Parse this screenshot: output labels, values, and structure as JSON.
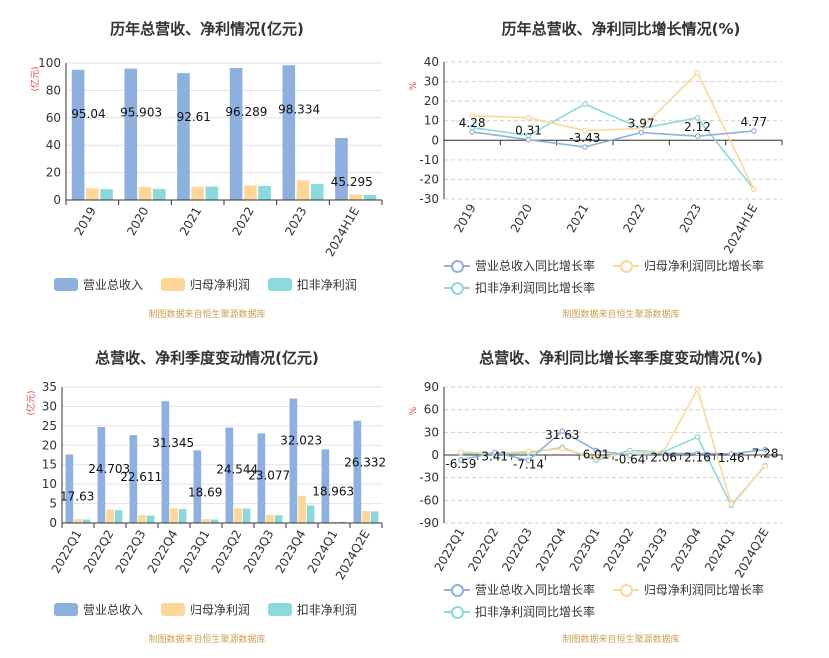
{
  "source_note": "制图数据来自恒生聚源数据库",
  "colors": {
    "revenue": "#8eb0de",
    "net": "#fdd79a",
    "deducted": "#8ad9db"
  },
  "chart_data": [
    {
      "type": "bar",
      "title": "历年总营收、净利情况(亿元)",
      "ylabel": "亿元",
      "categories": [
        "2019",
        "2020",
        "2021",
        "2022",
        "2023",
        "2024H1E"
      ],
      "ylim": [
        0,
        100
      ],
      "yticks": [
        0,
        20,
        40,
        60,
        80,
        100
      ],
      "series": [
        {
          "name": "营业总收入",
          "values": [
            95.04,
            95.903,
            92.61,
            96.289,
            98.334,
            45.295
          ],
          "labels": [
            "95.04",
            "95.903",
            "92.61",
            "96.289",
            "98.334",
            "45.295"
          ]
        },
        {
          "name": "归母净利润",
          "values": [
            8.5,
            9.6,
            9.7,
            10.6,
            14.4,
            3.9
          ]
        },
        {
          "name": "扣非净利润",
          "values": [
            7.9,
            8.1,
            9.8,
            10.3,
            11.8,
            3.7
          ]
        }
      ],
      "legend": "bottom"
    },
    {
      "type": "line",
      "title": "历年总营收、净利同比增长情况(%)",
      "ylabel": "%",
      "categories": [
        "2019",
        "2020",
        "2021",
        "2022",
        "2023",
        "2024H1E"
      ],
      "ylim": [
        -30,
        40
      ],
      "yticks": [
        -30,
        -20,
        -10,
        0,
        10,
        20,
        30,
        40
      ],
      "series": [
        {
          "name": "营业总收入同比增长率",
          "values": [
            4.28,
            0.31,
            -3.43,
            3.97,
            2.12,
            4.77
          ],
          "labels": [
            "4.28",
            "0.31",
            "-3.43",
            "3.97",
            "2.12",
            "4.77"
          ]
        },
        {
          "name": "归母净利润同比增长率",
          "values": [
            12.5,
            11.5,
            5.0,
            6.0,
            34.5,
            -25.0
          ]
        },
        {
          "name": "扣非净利润同比增长率",
          "values": [
            6.5,
            2.5,
            18.5,
            6.0,
            11.5,
            -25.0
          ]
        }
      ],
      "legend": "bottom"
    },
    {
      "type": "bar",
      "title": "总营收、净利季度变动情况(亿元)",
      "ylabel": "亿元",
      "categories": [
        "2022Q1",
        "2022Q2",
        "2022Q3",
        "2022Q4",
        "2023Q1",
        "2023Q2",
        "2023Q3",
        "2023Q4",
        "2024Q1",
        "2024Q2E"
      ],
      "ylim": [
        0,
        35
      ],
      "yticks": [
        0,
        5,
        10,
        15,
        20,
        25,
        30,
        35
      ],
      "series": [
        {
          "name": "营业总收入",
          "values": [
            17.63,
            24.703,
            22.611,
            31.345,
            18.69,
            24.544,
            23.077,
            32.023,
            18.963,
            26.332
          ],
          "labels": [
            "17.63",
            "24.703",
            "22.611",
            "31.345",
            "18.69",
            "24.544",
            "23.077",
            "32.023",
            "18.963",
            "26.332"
          ]
        },
        {
          "name": "归母净利润",
          "values": [
            1.0,
            3.5,
            2.0,
            3.8,
            1.0,
            3.8,
            2.1,
            7.0,
            0.3,
            3.1
          ]
        },
        {
          "name": "扣非净利润",
          "values": [
            0.9,
            3.3,
            1.9,
            3.6,
            0.9,
            3.7,
            2.0,
            4.5,
            0.3,
            3.0
          ]
        }
      ],
      "legend": "bottom"
    },
    {
      "type": "line",
      "title": "总营收、净利同比增长率季度变动情况(%)",
      "ylabel": "%",
      "categories": [
        "2022Q1",
        "2022Q2",
        "2022Q3",
        "2022Q4",
        "2023Q1",
        "2023Q2",
        "2023Q3",
        "2023Q4",
        "2024Q1",
        "2024Q2E"
      ],
      "ylim": [
        -90,
        90
      ],
      "yticks": [
        -90,
        -60,
        -30,
        0,
        30,
        60,
        90
      ],
      "series": [
        {
          "name": "营业总收入同比增长率",
          "values": [
            -6.59,
            3.41,
            -7.14,
            31.63,
            6.01,
            -0.64,
            2.06,
            2.16,
            1.46,
            7.28
          ],
          "labels": [
            "-6.59",
            "3.41",
            "-7.14",
            "31.63",
            "6.01",
            "-0.64",
            "2.06",
            "2.16",
            "1.46",
            "7.28"
          ]
        },
        {
          "name": "归母净利润同比增长率",
          "values": [
            4,
            2,
            5,
            8,
            -3,
            2,
            5,
            87,
            -65,
            -15
          ]
        },
        {
          "name": "扣非净利润同比增长率",
          "values": [
            2,
            1,
            3,
            10,
            -7,
            6,
            4,
            24,
            -67,
            -14
          ]
        }
      ],
      "legend": "bottom"
    }
  ]
}
